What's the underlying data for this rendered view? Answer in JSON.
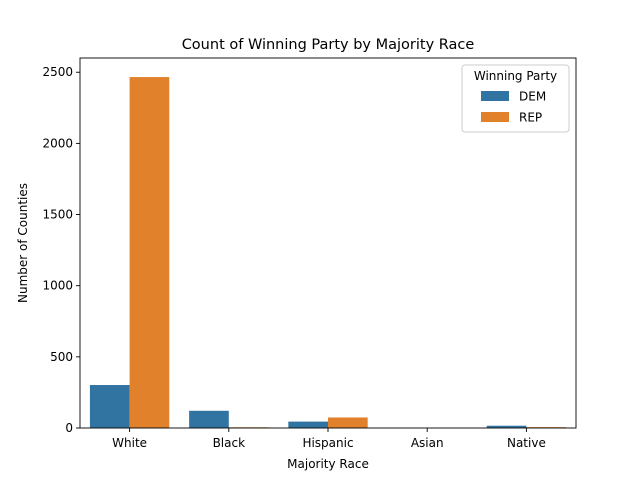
{
  "chart_data": {
    "type": "bar",
    "title": "Count of Winning Party by Majority Race",
    "xlabel": "Majority Race",
    "ylabel": "Number of Counties",
    "categories": [
      "White",
      "Black",
      "Hispanic",
      "Asian",
      "Native"
    ],
    "series": [
      {
        "name": "DEM",
        "color": "#3274a1",
        "values": [
          302,
          121,
          45,
          0,
          16
        ]
      },
      {
        "name": "REP",
        "color": "#e1812c",
        "values": [
          2466,
          5,
          74,
          0,
          6
        ]
      }
    ],
    "ylim": [
      0,
      2600
    ],
    "yticks": [
      0,
      500,
      1000,
      1500,
      2000,
      2500
    ],
    "grid": false,
    "legend": {
      "title": "Winning Party",
      "placement": "top-right"
    }
  }
}
